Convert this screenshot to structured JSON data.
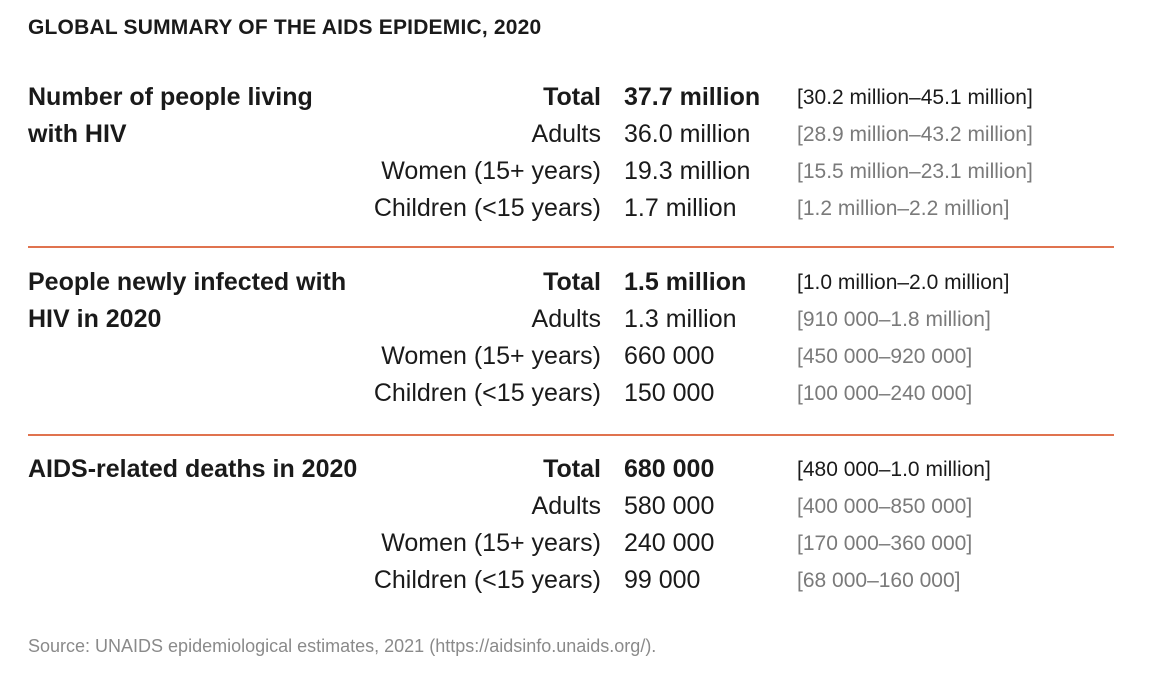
{
  "title": "GLOBAL SUMMARY OF THE AIDS EPIDEMIC, 2020",
  "sections": [
    {
      "heading": "Number of people living with HIV",
      "rows": [
        {
          "category": "Total",
          "value": "37.7 million",
          "range": "[30.2 million–45.1 million]"
        },
        {
          "category": "Adults",
          "value": "36.0 million",
          "range": "[28.9 million–43.2 million]"
        },
        {
          "category": "Women (15+ years)",
          "value": "19.3 million",
          "range": "[15.5 million–23.1 million]"
        },
        {
          "category": "Children (<15 years)",
          "value": "1.7 million",
          "range": "[1.2 million–2.2 million]"
        }
      ]
    },
    {
      "heading": "People newly infected with HIV in 2020",
      "rows": [
        {
          "category": "Total",
          "value": "1.5 million",
          "range": "[1.0 million–2.0 million]"
        },
        {
          "category": "Adults",
          "value": "1.3 million",
          "range": "[910 000–1.8 million]"
        },
        {
          "category": "Women (15+ years)",
          "value": "660 000",
          "range": "[450 000–920 000]"
        },
        {
          "category": "Children (<15 years)",
          "value": "150 000",
          "range": "[100 000–240 000]"
        }
      ]
    },
    {
      "heading": "AIDS-related deaths in 2020",
      "rows": [
        {
          "category": "Total",
          "value": "680 000",
          "range": "[480 000–1.0 million]"
        },
        {
          "category": "Adults",
          "value": "580 000",
          "range": "[400 000–850 000]"
        },
        {
          "category": "Women (15+ years)",
          "value": "240 000",
          "range": "[170 000–360 000]"
        },
        {
          "category": "Children (<15 years)",
          "value": "99 000",
          "range": "[68 000–160 000]"
        }
      ]
    }
  ],
  "source": "Source: UNAIDS epidemiological estimates, 2021 (https://aidsinfo.unaids.org/).",
  "colors": {
    "divider": "#e0734f",
    "range_text": "#7a7a7a",
    "source_text": "#8a8a8a"
  }
}
